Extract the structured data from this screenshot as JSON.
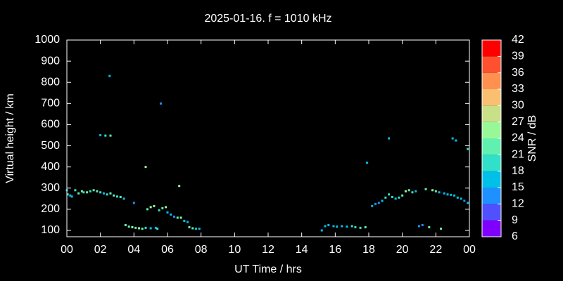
{
  "chart_data": {
    "type": "scatter",
    "title": "2025-01-16. f = 1010 kHz",
    "xlabel": "UT Time / hrs",
    "ylabel": "Virtual height / km",
    "x": [
      0.0,
      0.05,
      0.2,
      0.3,
      0.5,
      0.7,
      0.9,
      1.0,
      1.2,
      1.4,
      1.6,
      1.8,
      2.0,
      2.2,
      2.4,
      2.6,
      2.8,
      3.0,
      3.2,
      3.4,
      4.0,
      2.0,
      2.3,
      2.6,
      2.55,
      5.6,
      4.7,
      6.7,
      3.5,
      3.7,
      3.9,
      4.1,
      4.3,
      4.5,
      4.7,
      5.0,
      5.3,
      5.4,
      4.8,
      5.0,
      5.2,
      5.5,
      5.7,
      5.9,
      6.0,
      6.2,
      6.4,
      6.6,
      6.8,
      7.0,
      7.2,
      7.3,
      7.5,
      7.7,
      7.9,
      15.2,
      15.4,
      15.6,
      15.9,
      16.1,
      16.4,
      16.7,
      17.0,
      17.2,
      17.5,
      17.8,
      17.9,
      19.2,
      18.2,
      18.4,
      18.6,
      18.8,
      19.0,
      19.2,
      19.4,
      19.6,
      19.8,
      20.0,
      20.2,
      20.4,
      20.6,
      20.8,
      21.0,
      21.2,
      21.4,
      21.6,
      21.8,
      22.0,
      22.2,
      22.3,
      22.5,
      22.7,
      22.9,
      23.1,
      23.3,
      23.5,
      23.7,
      23.9,
      23.0,
      23.2,
      23.9
    ],
    "y": [
      290,
      270,
      265,
      260,
      290,
      275,
      285,
      280,
      280,
      285,
      290,
      285,
      280,
      275,
      270,
      275,
      265,
      260,
      258,
      250,
      230,
      550,
      548,
      548,
      830,
      700,
      400,
      310,
      125,
      118,
      115,
      112,
      110,
      108,
      112,
      110,
      112,
      108,
      200,
      210,
      215,
      195,
      205,
      210,
      185,
      175,
      165,
      160,
      160,
      145,
      140,
      115,
      110,
      108,
      108,
      100,
      120,
      125,
      120,
      118,
      120,
      118,
      120,
      115,
      112,
      115,
      420,
      535,
      215,
      225,
      230,
      240,
      255,
      270,
      258,
      250,
      255,
      265,
      285,
      290,
      280,
      285,
      120,
      125,
      295,
      115,
      290,
      285,
      280,
      108,
      275,
      270,
      268,
      265,
      255,
      250,
      240,
      230,
      535,
      525,
      485
    ],
    "snr": [
      15,
      18,
      15,
      15,
      18,
      21,
      21,
      18,
      21,
      18,
      21,
      21,
      18,
      15,
      18,
      21,
      21,
      18,
      21,
      15,
      12,
      15,
      18,
      21,
      15,
      12,
      24,
      24,
      21,
      21,
      24,
      21,
      24,
      21,
      18,
      15,
      15,
      18,
      21,
      24,
      24,
      18,
      21,
      24,
      15,
      15,
      12,
      21,
      24,
      15,
      15,
      21,
      21,
      15,
      15,
      15,
      15,
      15,
      15,
      15,
      15,
      15,
      18,
      18,
      18,
      21,
      15,
      15,
      15,
      12,
      12,
      15,
      18,
      18,
      18,
      15,
      18,
      21,
      24,
      21,
      18,
      15,
      12,
      12,
      21,
      21,
      24,
      21,
      15,
      21,
      15,
      15,
      15,
      15,
      15,
      15,
      12,
      15,
      15,
      15,
      18
    ],
    "xlim": [
      0,
      24
    ],
    "ylim": [
      70,
      1000
    ],
    "xticks": [
      {
        "value": 0,
        "label": "00"
      },
      {
        "value": 2,
        "label": "02"
      },
      {
        "value": 4,
        "label": "04"
      },
      {
        "value": 6,
        "label": "06"
      },
      {
        "value": 8,
        "label": "08"
      },
      10,
      12,
      14,
      16,
      18,
      20,
      22,
      {
        "value": 24,
        "label": "00"
      }
    ],
    "yticks": [
      100,
      200,
      300,
      400,
      500,
      600,
      700,
      800,
      900,
      1000
    ],
    "colorbar": {
      "label": "SNR / dB",
      "lim": [
        6,
        42
      ],
      "ticks": [
        6,
        9,
        12,
        15,
        18,
        21,
        24,
        27,
        30,
        33,
        36,
        39,
        42
      ],
      "colors": [
        "#8000ff",
        "#5050ff",
        "#1e90ff",
        "#00c0e8",
        "#30e0c8",
        "#60f0b0",
        "#98f898",
        "#c8e088",
        "#f8c070",
        "#ff9050",
        "#ff5030",
        "#ff0000"
      ]
    }
  }
}
